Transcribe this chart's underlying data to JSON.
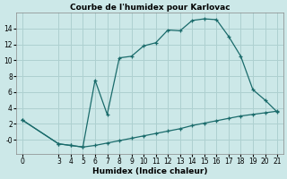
{
  "title": "Courbe de l'humidex pour Karlovac",
  "xlabel": "Humidex (Indice chaleur)",
  "background_color": "#cce8e8",
  "grid_color": "#aed0d0",
  "line_color": "#1a6b6b",
  "x_upper": [
    0,
    3,
    4,
    5,
    6,
    7,
    8,
    9,
    10,
    11,
    12,
    13,
    14,
    15,
    16,
    17,
    18,
    19,
    20,
    21
  ],
  "y_upper": [
    2.5,
    -0.5,
    -0.7,
    -0.9,
    7.5,
    3.2,
    10.3,
    10.5,
    11.8,
    12.2,
    13.8,
    13.7,
    15.0,
    15.2,
    15.1,
    13.0,
    10.5,
    6.3,
    5.0,
    3.5
  ],
  "x_lower": [
    0,
    3,
    4,
    5,
    6,
    7,
    8,
    9,
    10,
    11,
    12,
    13,
    14,
    15,
    16,
    17,
    18,
    19,
    20,
    21
  ],
  "y_lower": [
    2.5,
    -0.5,
    -0.7,
    -0.9,
    -0.7,
    -0.4,
    -0.1,
    0.2,
    0.5,
    0.8,
    1.1,
    1.4,
    1.8,
    2.1,
    2.4,
    2.7,
    3.0,
    3.2,
    3.4,
    3.6
  ],
  "xlim": [
    -0.5,
    21.5
  ],
  "ylim": [
    -1.8,
    16
  ],
  "xticks": [
    0,
    3,
    4,
    5,
    6,
    7,
    8,
    9,
    10,
    11,
    12,
    13,
    14,
    15,
    16,
    17,
    18,
    19,
    20,
    21
  ],
  "yticks": [
    0,
    2,
    4,
    6,
    8,
    10,
    12,
    14
  ],
  "ytick_labels": [
    "-0",
    "2",
    "4",
    "6",
    "8",
    "10",
    "12",
    "14"
  ],
  "title_fontsize": 6.5,
  "axis_fontsize": 6.5,
  "tick_fontsize": 5.5
}
